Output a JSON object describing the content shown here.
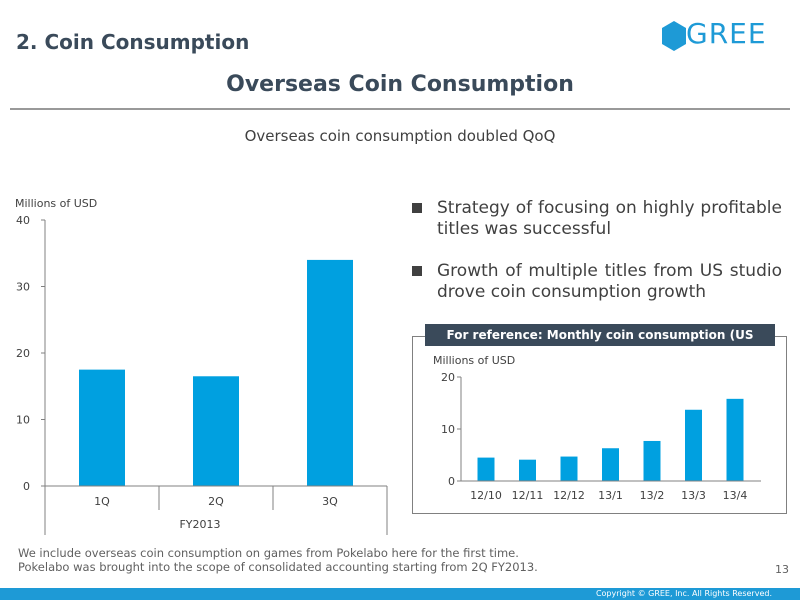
{
  "header": {
    "slide_title": "2. Coin Consumption",
    "main_title": "Overseas Coin Consumption",
    "subtitle": "Overseas coin consumption doubled QoQ",
    "logo_text": "GREE"
  },
  "bullets": [
    "Strategy of focusing on highly profitable titles was successful",
    "Growth of multiple titles from US studio drove coin consumption growth"
  ],
  "reference_label": "For reference: Monthly coin consumption (US studio)",
  "footnote": {
    "line1": "We include overseas coin consumption on games from Pokelabo here for the first time.",
    "line2": "Pokelabo was brought into the scope of consolidated accounting starting from 2Q FY2013."
  },
  "page_number": "13",
  "copyright": "Copyright © GREE, Inc. All Rights Reserved.",
  "colors": {
    "bar": "#00a0e0",
    "title": "#3a4a5a",
    "brand": "#1e9ad6"
  },
  "chart_data": [
    {
      "type": "bar",
      "ylabel": "Millions of USD",
      "categories": [
        "1Q",
        "2Q",
        "3Q"
      ],
      "group_label": "FY2013",
      "values": [
        17.5,
        16.5,
        34
      ],
      "ylim": [
        0,
        40
      ],
      "yticks": [
        0,
        10,
        20,
        30,
        40
      ]
    },
    {
      "type": "bar",
      "title": "For reference: Monthly coin consumption (US studio)",
      "ylabel": "Millions of USD",
      "categories": [
        "12/10",
        "12/11",
        "12/12",
        "13/1",
        "13/2",
        "13/3",
        "13/4"
      ],
      "values": [
        4.5,
        4.1,
        4.7,
        6.3,
        7.7,
        13.7,
        15.8
      ],
      "ylim": [
        0,
        20
      ],
      "yticks": [
        0,
        10,
        20
      ]
    }
  ]
}
